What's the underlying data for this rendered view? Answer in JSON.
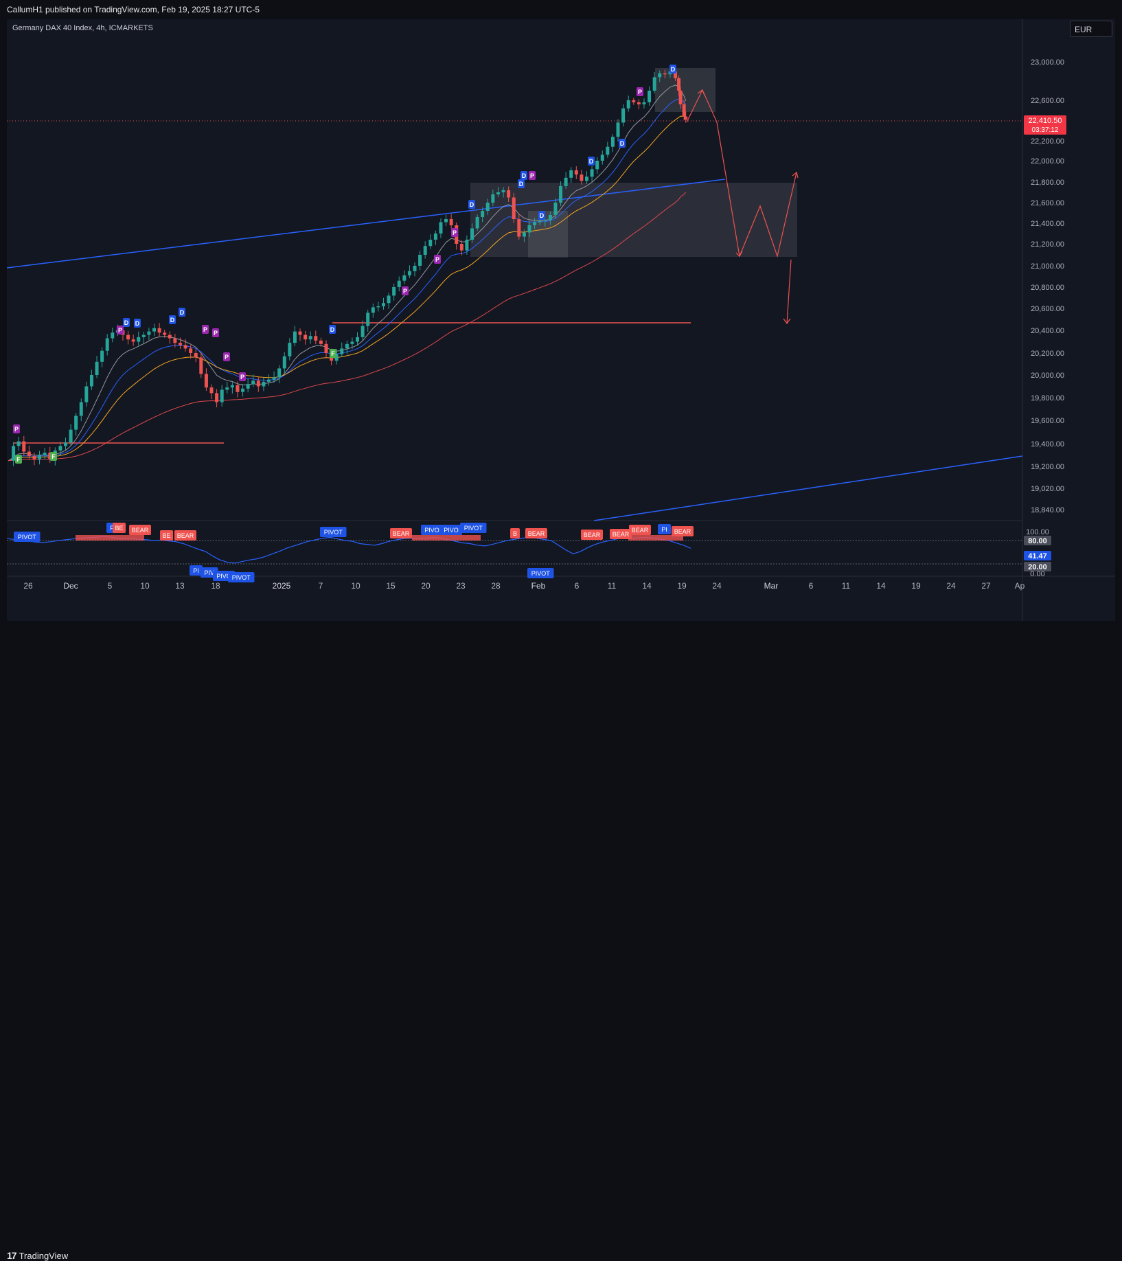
{
  "header": {
    "published": "CallumH1 published on TradingView.com, Feb 19, 2025 18:27 UTC-5"
  },
  "symbol_title": "Germany DAX 40 Index, 4h, ICMARKETS",
  "currency": "EUR",
  "footer_brand": "TradingView",
  "colors": {
    "background": "#131722",
    "bull": "#26a69a",
    "bear": "#ef5350",
    "blue_line": "#2962ff",
    "ema_orange": "#f5a623",
    "ema_gray": "#9598a1",
    "ema_red": "#e0474c",
    "label_blue": "#1e53e5",
    "label_purple": "#9c27b0",
    "label_green": "#4caf50"
  },
  "chart_data": {
    "type": "line",
    "title": "Germany DAX 40 Index, 4h, ICMARKETS",
    "y_axis": {
      "min": 18700,
      "max": 23200,
      "ticks": [
        {
          "value": 23000,
          "label": "23,000.00"
        },
        {
          "value": 22600,
          "label": "22,600.00"
        },
        {
          "value": 22200,
          "label": "22,200.00"
        },
        {
          "value": 22000,
          "label": "22,000.00"
        },
        {
          "value": 21800,
          "label": "21,800.00"
        },
        {
          "value": 21600,
          "label": "21,600.00"
        },
        {
          "value": 21400,
          "label": "21,400.00"
        },
        {
          "value": 21200,
          "label": "21,200.00"
        },
        {
          "value": 21000,
          "label": "21,000.00"
        },
        {
          "value": 20800,
          "label": "20,800.00"
        },
        {
          "value": 20600,
          "label": "20,600.00"
        },
        {
          "value": 20400,
          "label": "20,400.00"
        },
        {
          "value": 20200,
          "label": "20,200.00"
        },
        {
          "value": 20000,
          "label": "20,000.00"
        },
        {
          "value": 19800,
          "label": "19,800.00"
        },
        {
          "value": 19600,
          "label": "19,600.00"
        },
        {
          "value": 19400,
          "label": "19,400.00"
        },
        {
          "value": 19200,
          "label": "19,200.00"
        },
        {
          "value": 19020,
          "label": "19,020.00"
        },
        {
          "value": 18840,
          "label": "18,840.00"
        }
      ]
    },
    "last_price": {
      "value": 22410.5,
      "label": "22,410.50",
      "countdown": "03:37:12"
    },
    "x_axis_ticks": [
      "26",
      "Dec",
      "5",
      "10",
      "13",
      "18",
      "2025",
      "7",
      "10",
      "15",
      "20",
      "23",
      "28",
      "Feb",
      "6",
      "11",
      "14",
      "19",
      "24",
      "Mar",
      "6",
      "11",
      "14",
      "19",
      "24",
      "27",
      "Ap"
    ],
    "price_series": [
      [
        0,
        19250
      ],
      [
        6,
        19380
      ],
      [
        12,
        19420
      ],
      [
        18,
        19330
      ],
      [
        24,
        19290
      ],
      [
        30,
        19260
      ],
      [
        36,
        19300
      ],
      [
        42,
        19320
      ],
      [
        48,
        19260
      ],
      [
        54,
        19340
      ],
      [
        60,
        19380
      ],
      [
        66,
        19410
      ],
      [
        72,
        19520
      ],
      [
        78,
        19640
      ],
      [
        84,
        19760
      ],
      [
        90,
        19900
      ],
      [
        96,
        20000
      ],
      [
        102,
        20120
      ],
      [
        108,
        20220
      ],
      [
        114,
        20330
      ],
      [
        120,
        20380
      ],
      [
        126,
        20400
      ],
      [
        132,
        20360
      ],
      [
        138,
        20320
      ],
      [
        144,
        20300
      ],
      [
        150,
        20340
      ],
      [
        156,
        20360
      ],
      [
        162,
        20390
      ],
      [
        168,
        20420
      ],
      [
        174,
        20380
      ],
      [
        180,
        20360
      ],
      [
        186,
        20330
      ],
      [
        192,
        20290
      ],
      [
        198,
        20270
      ],
      [
        204,
        20240
      ],
      [
        210,
        20200
      ],
      [
        216,
        20160
      ],
      [
        222,
        20010
      ],
      [
        228,
        19890
      ],
      [
        234,
        19840
      ],
      [
        240,
        19760
      ],
      [
        246,
        19870
      ],
      [
        252,
        19890
      ],
      [
        258,
        19910
      ],
      [
        264,
        19850
      ],
      [
        270,
        19880
      ],
      [
        276,
        19920
      ],
      [
        282,
        19950
      ],
      [
        288,
        19900
      ],
      [
        294,
        19940
      ],
      [
        300,
        19960
      ],
      [
        306,
        19980
      ],
      [
        312,
        20060
      ],
      [
        318,
        20170
      ],
      [
        324,
        20290
      ],
      [
        330,
        20390
      ],
      [
        336,
        20360
      ],
      [
        342,
        20320
      ],
      [
        348,
        20350
      ],
      [
        354,
        20310
      ],
      [
        360,
        20280
      ],
      [
        366,
        20200
      ],
      [
        372,
        20130
      ],
      [
        378,
        20190
      ],
      [
        384,
        20240
      ],
      [
        390,
        20280
      ],
      [
        396,
        20300
      ],
      [
        402,
        20340
      ],
      [
        408,
        20440
      ],
      [
        414,
        20560
      ],
      [
        420,
        20610
      ],
      [
        426,
        20620
      ],
      [
        432,
        20650
      ],
      [
        438,
        20720
      ],
      [
        444,
        20800
      ],
      [
        450,
        20860
      ],
      [
        456,
        20910
      ],
      [
        462,
        20950
      ],
      [
        468,
        21000
      ],
      [
        474,
        21100
      ],
      [
        480,
        21180
      ],
      [
        486,
        21240
      ],
      [
        492,
        21300
      ],
      [
        498,
        21410
      ],
      [
        504,
        21440
      ],
      [
        510,
        21380
      ],
      [
        516,
        21200
      ],
      [
        522,
        21140
      ],
      [
        528,
        21240
      ],
      [
        534,
        21350
      ],
      [
        540,
        21460
      ],
      [
        546,
        21520
      ],
      [
        552,
        21600
      ],
      [
        558,
        21680
      ],
      [
        564,
        21700
      ],
      [
        570,
        21720
      ],
      [
        576,
        21650
      ],
      [
        582,
        21440
      ],
      [
        588,
        21270
      ],
      [
        594,
        21310
      ],
      [
        600,
        21380
      ],
      [
        606,
        21410
      ],
      [
        612,
        21420
      ],
      [
        618,
        21430
      ],
      [
        624,
        21480
      ],
      [
        630,
        21600
      ],
      [
        636,
        21760
      ],
      [
        642,
        21840
      ],
      [
        648,
        21910
      ],
      [
        654,
        21870
      ],
      [
        660,
        21810
      ],
      [
        666,
        21850
      ],
      [
        672,
        21920
      ],
      [
        678,
        22000
      ],
      [
        684,
        22060
      ],
      [
        690,
        22140
      ],
      [
        696,
        22240
      ],
      [
        702,
        22380
      ],
      [
        708,
        22520
      ],
      [
        714,
        22600
      ],
      [
        720,
        22580
      ],
      [
        726,
        22560
      ],
      [
        732,
        22580
      ],
      [
        738,
        22700
      ],
      [
        744,
        22840
      ],
      [
        750,
        22880
      ],
      [
        756,
        22870
      ],
      [
        762,
        22900
      ],
      [
        768,
        22830
      ],
      [
        772,
        22700
      ],
      [
        774,
        22560
      ],
      [
        778,
        22440
      ],
      [
        780,
        22410
      ]
    ],
    "indicator": {
      "y_range": [
        0,
        100
      ],
      "levels": [
        {
          "value": 100,
          "label": "100.00"
        },
        {
          "value": 80,
          "label": "80.00"
        },
        {
          "value": 41.47,
          "label": "41.47"
        },
        {
          "value": 20,
          "label": "20.00"
        },
        {
          "value": 0,
          "label": "0.00"
        }
      ],
      "labels": [
        "PIVOT",
        "PI",
        "BE",
        "BEAR",
        "BE",
        "BEAR",
        "PI",
        "PIV",
        "PIVO",
        "PIVOT",
        "PIVOT",
        "BEAR",
        "PIVO",
        "PIVO",
        "PIVOT",
        "B",
        "BEAR",
        "PIVOT",
        "BEAR",
        "BEAR",
        "BEAR",
        "PI",
        "BEAR"
      ]
    },
    "signal_labels": [
      "P",
      "F",
      "F",
      "P",
      "D",
      "D",
      "D",
      "D",
      "P",
      "P",
      "P",
      "P",
      "F",
      "D",
      "P",
      "P",
      "P",
      "D",
      "D",
      "D",
      "P",
      "D",
      "D",
      "D",
      "P",
      "D"
    ]
  }
}
